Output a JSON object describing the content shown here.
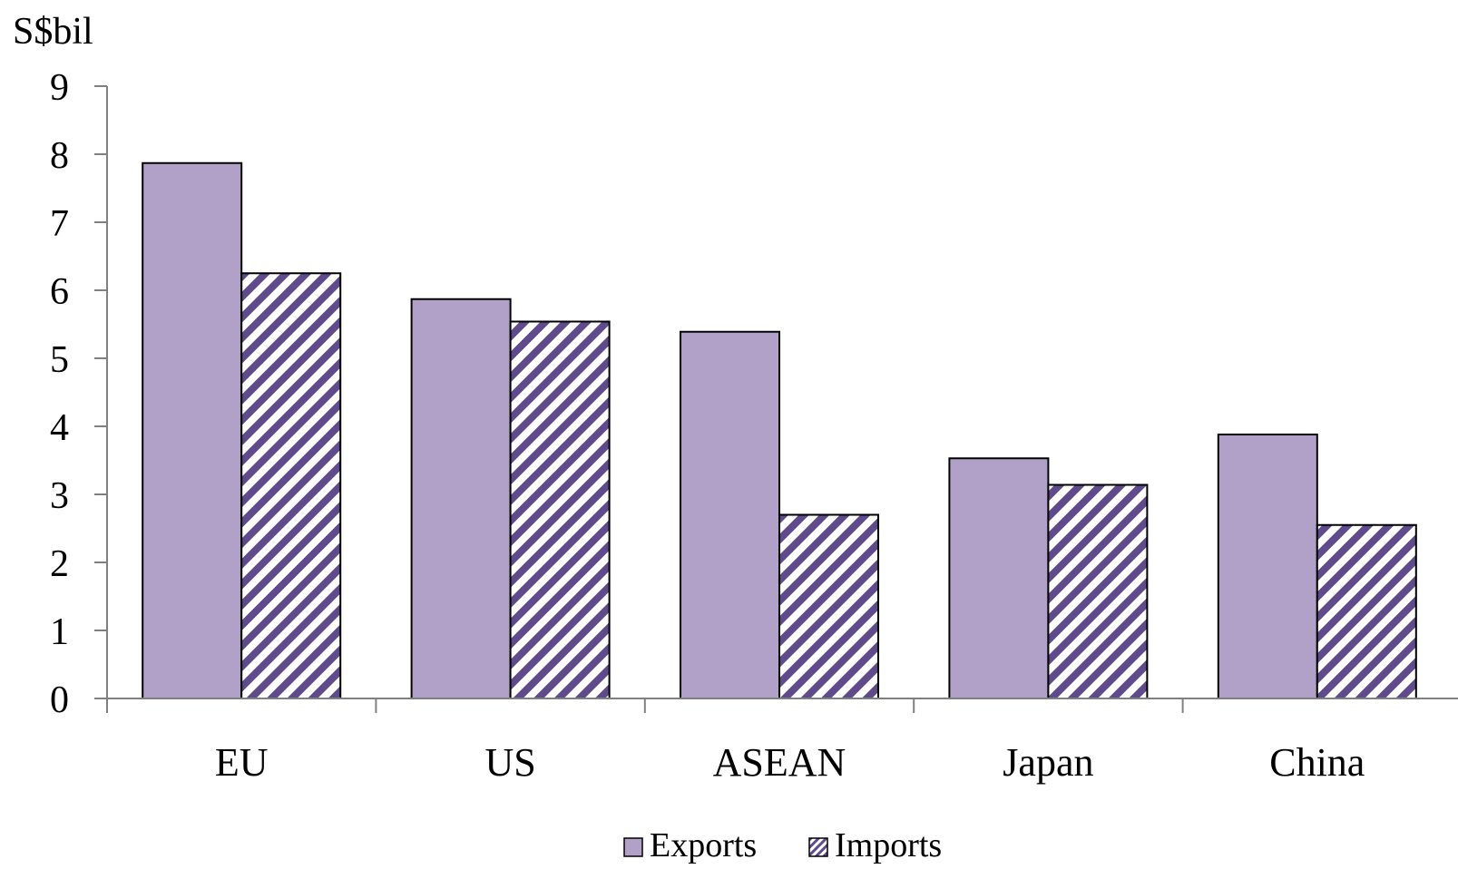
{
  "chart_data": {
    "type": "bar",
    "title": "",
    "xlabel": "",
    "ylabel": "S$bil",
    "ylim": [
      0,
      9
    ],
    "yticks": [
      0,
      1,
      2,
      3,
      4,
      5,
      6,
      7,
      8,
      9
    ],
    "categories": [
      "EU",
      "US",
      "ASEAN",
      "Japan",
      "China"
    ],
    "series": [
      {
        "name": "Exports",
        "values": [
          7.87,
          5.87,
          5.39,
          3.53,
          3.88
        ],
        "color": "#b1a0c7",
        "pattern": "solid"
      },
      {
        "name": "Imports",
        "values": [
          6.25,
          5.54,
          2.7,
          3.14,
          2.55
        ],
        "color": "#5f4b8b",
        "pattern": "diagonal-stripes"
      }
    ],
    "grid": false,
    "legend_position": "bottom-center"
  }
}
